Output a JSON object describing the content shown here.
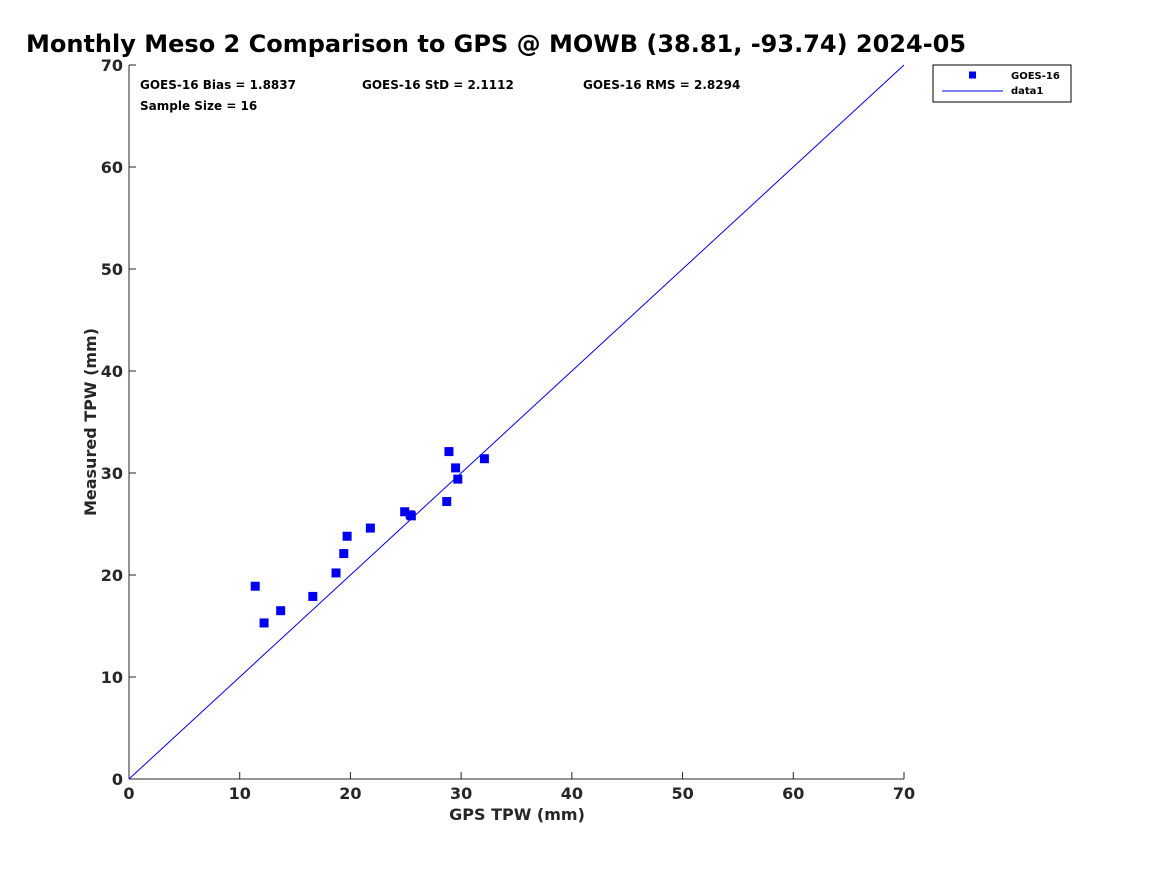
{
  "chart_data": {
    "type": "scatter",
    "title": "Monthly Meso 2 Comparison to GPS @ MOWB (38.81, -93.74) 2024-05",
    "xlabel": "GPS TPW (mm)",
    "ylabel": "Measured TPW (mm)",
    "xlim": [
      0,
      70
    ],
    "ylim": [
      0,
      70
    ],
    "xticks": [
      0,
      10,
      20,
      30,
      40,
      50,
      60,
      70
    ],
    "yticks": [
      0,
      10,
      20,
      30,
      40,
      50,
      60,
      70
    ],
    "grid": false,
    "legend_position": "top-right",
    "stats": {
      "bias": "GOES-16 Bias = 1.8837",
      "std": "GOES-16 StD = 2.1112",
      "rms": "GOES-16 RMS = 2.8294",
      "sample": "Sample Size = 16"
    },
    "series": [
      {
        "name": "GOES-16",
        "kind": "scatter",
        "marker": "square",
        "color": "#0000ee",
        "points": [
          {
            "x": 11.4,
            "y": 18.9
          },
          {
            "x": 12.2,
            "y": 15.3
          },
          {
            "x": 13.7,
            "y": 16.5
          },
          {
            "x": 16.6,
            "y": 17.9
          },
          {
            "x": 18.7,
            "y": 20.2
          },
          {
            "x": 19.4,
            "y": 22.1
          },
          {
            "x": 19.7,
            "y": 23.8
          },
          {
            "x": 21.8,
            "y": 24.6
          },
          {
            "x": 24.9,
            "y": 26.2
          },
          {
            "x": 25.4,
            "y": 25.9
          },
          {
            "x": 25.5,
            "y": 25.8
          },
          {
            "x": 28.7,
            "y": 27.2
          },
          {
            "x": 28.9,
            "y": 32.1
          },
          {
            "x": 29.5,
            "y": 30.5
          },
          {
            "x": 29.7,
            "y": 29.4
          },
          {
            "x": 32.1,
            "y": 31.4
          }
        ]
      },
      {
        "name": "data1",
        "kind": "line",
        "color": "#0000ee",
        "points": [
          {
            "x": 0,
            "y": 0
          },
          {
            "x": 70,
            "y": 70
          }
        ]
      }
    ]
  }
}
